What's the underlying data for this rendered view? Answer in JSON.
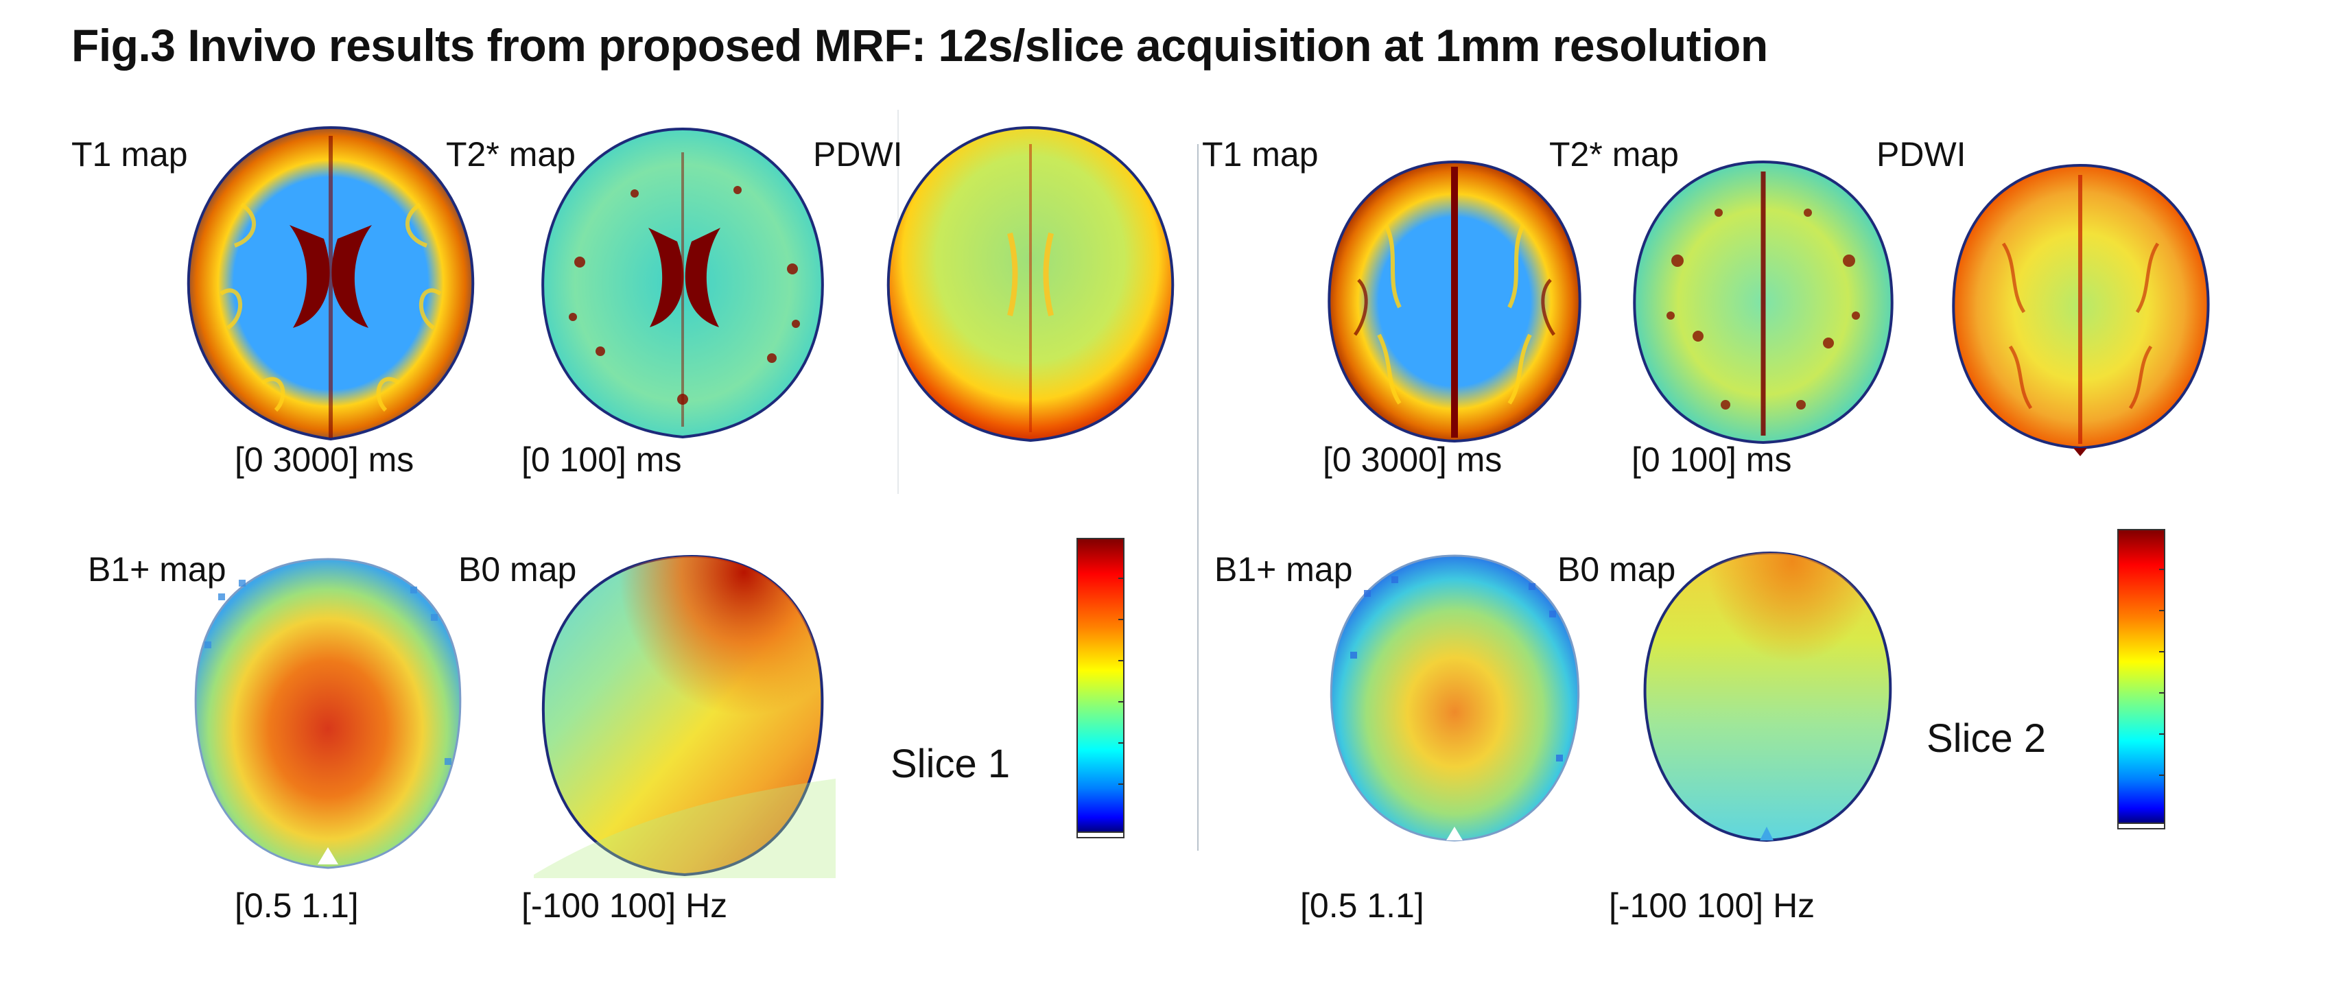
{
  "figure": {
    "title": "Fig.3 Invivo results from proposed MRF: 12s/slice acquisition at 1mm resolution"
  },
  "slices": [
    {
      "slice_label": "Slice 1",
      "maps": [
        {
          "name": "T1 map",
          "range": "[0 3000] ms"
        },
        {
          "name": "T2* map",
          "range": "[0 100] ms"
        },
        {
          "name": "PDWI",
          "range": ""
        },
        {
          "name": "B1+ map",
          "range": "[0.5 1.1]"
        },
        {
          "name": "B0 map",
          "range": "[-100 100] Hz"
        }
      ]
    },
    {
      "slice_label": "Slice 2",
      "maps": [
        {
          "name": "T1 map",
          "range": "[0 3000] ms"
        },
        {
          "name": "T2* map",
          "range": "[0 100] ms"
        },
        {
          "name": "PDWI",
          "range": ""
        },
        {
          "name": "B1+ map",
          "range": "[0.5 1.1]"
        },
        {
          "name": "B0 map",
          "range": "[-100 100] Hz"
        }
      ]
    }
  ],
  "colormap": {
    "name": "jet",
    "colors": [
      "#7f0000",
      "#ff0000",
      "#ff8000",
      "#ffff00",
      "#80ff80",
      "#00ffff",
      "#0080ff",
      "#0000ff",
      "#00007f"
    ]
  },
  "colors": {
    "t1_bg": "#3aa6ff",
    "t1_ring": "#ffd21a",
    "t1_dark": "#7a0000",
    "t2_bg": "#3fd1c9",
    "t2_speck": "#e2f05a",
    "pd_center": "#9fe07a",
    "pd_edge": "#c41b00",
    "b1_center": "#d8381a",
    "b1_edge": "#3fa7e8",
    "b0_top": "#e04a14",
    "b0_mid": "#f3c82c",
    "b0_low": "#7fe7b2",
    "b0_left": "#5fd6df"
  }
}
